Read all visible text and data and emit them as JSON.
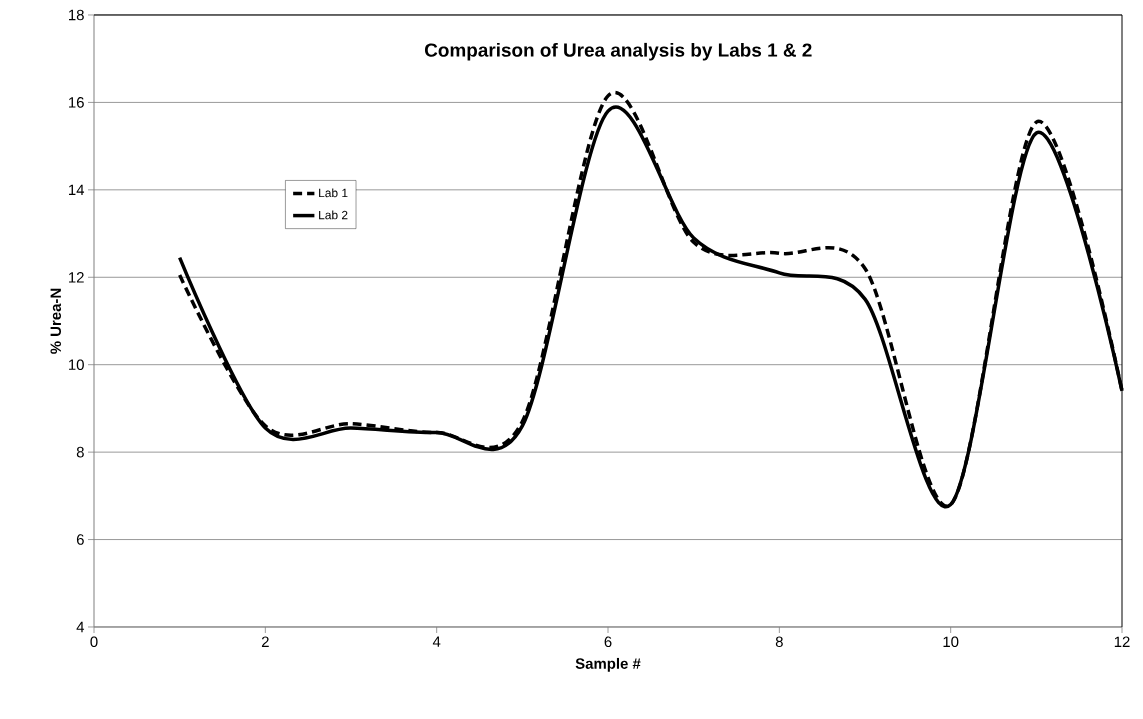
{
  "chart_data": {
    "type": "line",
    "title": "Comparison of Urea analysis by Labs 1 & 2",
    "xlabel": "Sample #",
    "ylabel": "% Urea-N",
    "x": [
      1,
      2,
      3,
      4,
      5,
      6,
      7,
      8,
      9,
      10,
      11,
      12
    ],
    "series": [
      {
        "name": "Lab 1",
        "color": "#000000",
        "line_style": "dashed",
        "values": [
          12.05,
          8.6,
          8.65,
          8.45,
          8.7,
          16.15,
          12.8,
          12.55,
          12.2,
          6.8,
          15.55,
          9.4
        ]
      },
      {
        "name": "Lab 2",
        "color": "#000000",
        "line_style": "solid",
        "values": [
          12.45,
          8.55,
          8.55,
          8.45,
          8.6,
          15.8,
          12.9,
          12.1,
          11.5,
          6.8,
          15.3,
          9.4
        ]
      }
    ],
    "xlim": [
      0,
      12
    ],
    "ylim": [
      4,
      18
    ],
    "xticks": [
      0,
      2,
      4,
      6,
      8,
      10,
      12
    ],
    "yticks": [
      4,
      6,
      8,
      10,
      12,
      14,
      16,
      18
    ],
    "grid": "y",
    "legend": "top left"
  }
}
